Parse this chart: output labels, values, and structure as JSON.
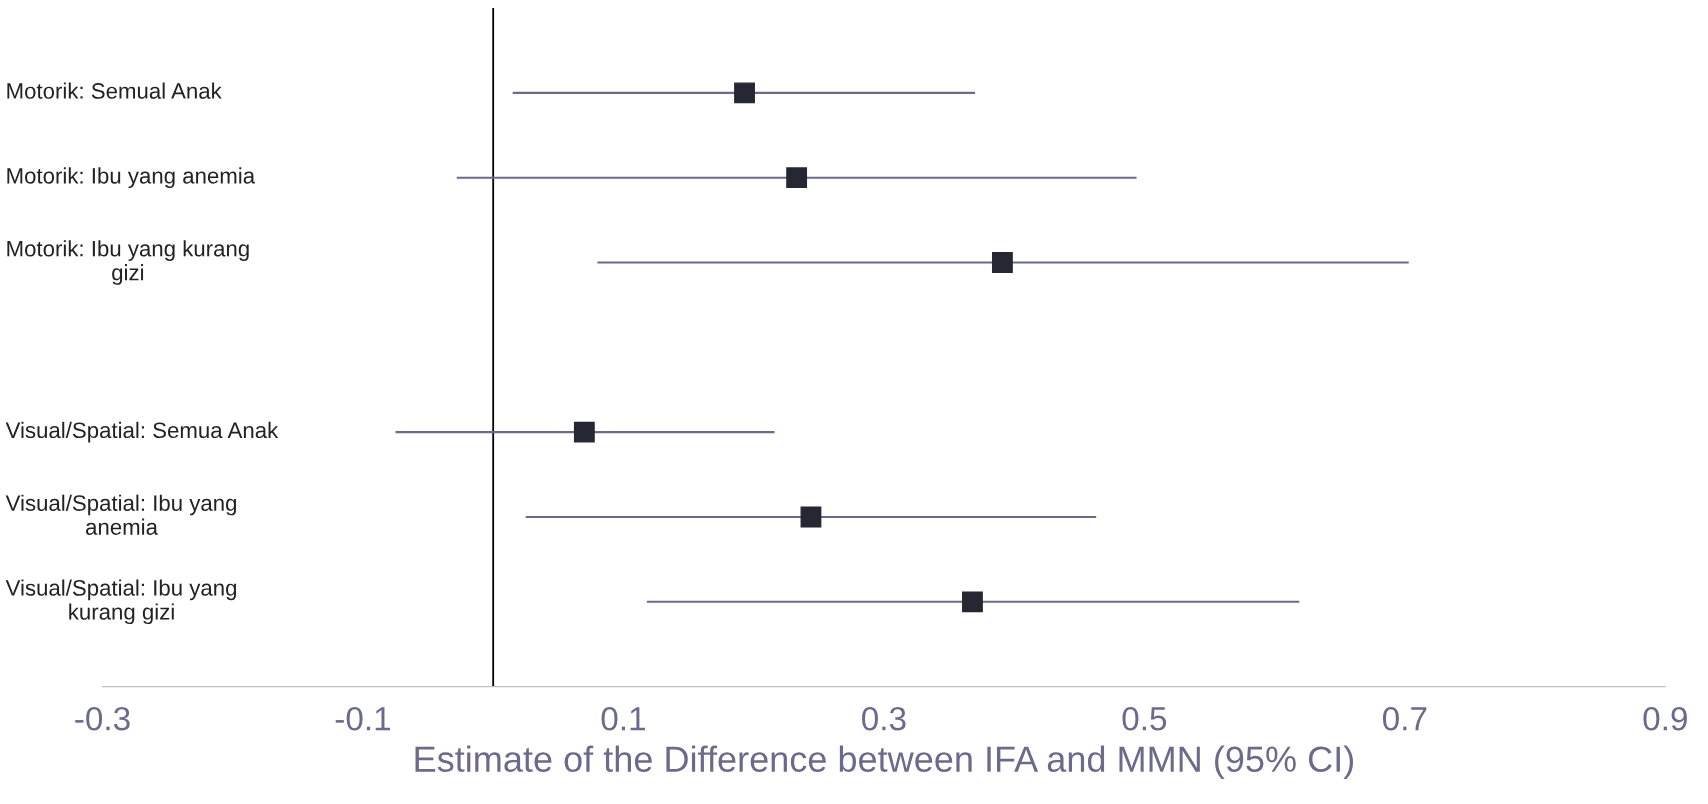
{
  "chart_data": {
    "type": "scatter",
    "orientation": "horizontal",
    "xlabel": "Estimate of the Difference between IFA and MMN (95% CI)",
    "categories": [
      "Motorik: Semual Anak",
      "Motorik: Ibu yang anemia",
      "Motorik: Ibu yang kurang\ngizi",
      null,
      "Visual/Spatial: Semua Anak",
      "Visual/Spatial: Ibu yang\nanemia",
      "Visual/Spatial: Ibu yang\nkurang gizi"
    ],
    "values": [
      0.193,
      0.233,
      0.391,
      null,
      0.07,
      0.244,
      0.368
    ],
    "errors": [
      [
        0.015,
        0.37
      ],
      [
        -0.028,
        0.494
      ],
      [
        0.08,
        0.703
      ],
      null,
      [
        -0.075,
        0.216
      ],
      [
        0.025,
        0.463
      ],
      [
        0.118,
        0.619
      ]
    ],
    "color": "#252733",
    "marker": "square",
    "xlim": [
      -0.3,
      0.9
    ],
    "xticks": [
      -0.3,
      -0.1,
      0.1,
      0.3,
      0.5,
      0.7,
      0.9
    ],
    "ref_lines": [
      {
        "axis": "x",
        "value": 0,
        "color": "#000000"
      }
    ],
    "grid": false,
    "legend": false
  }
}
